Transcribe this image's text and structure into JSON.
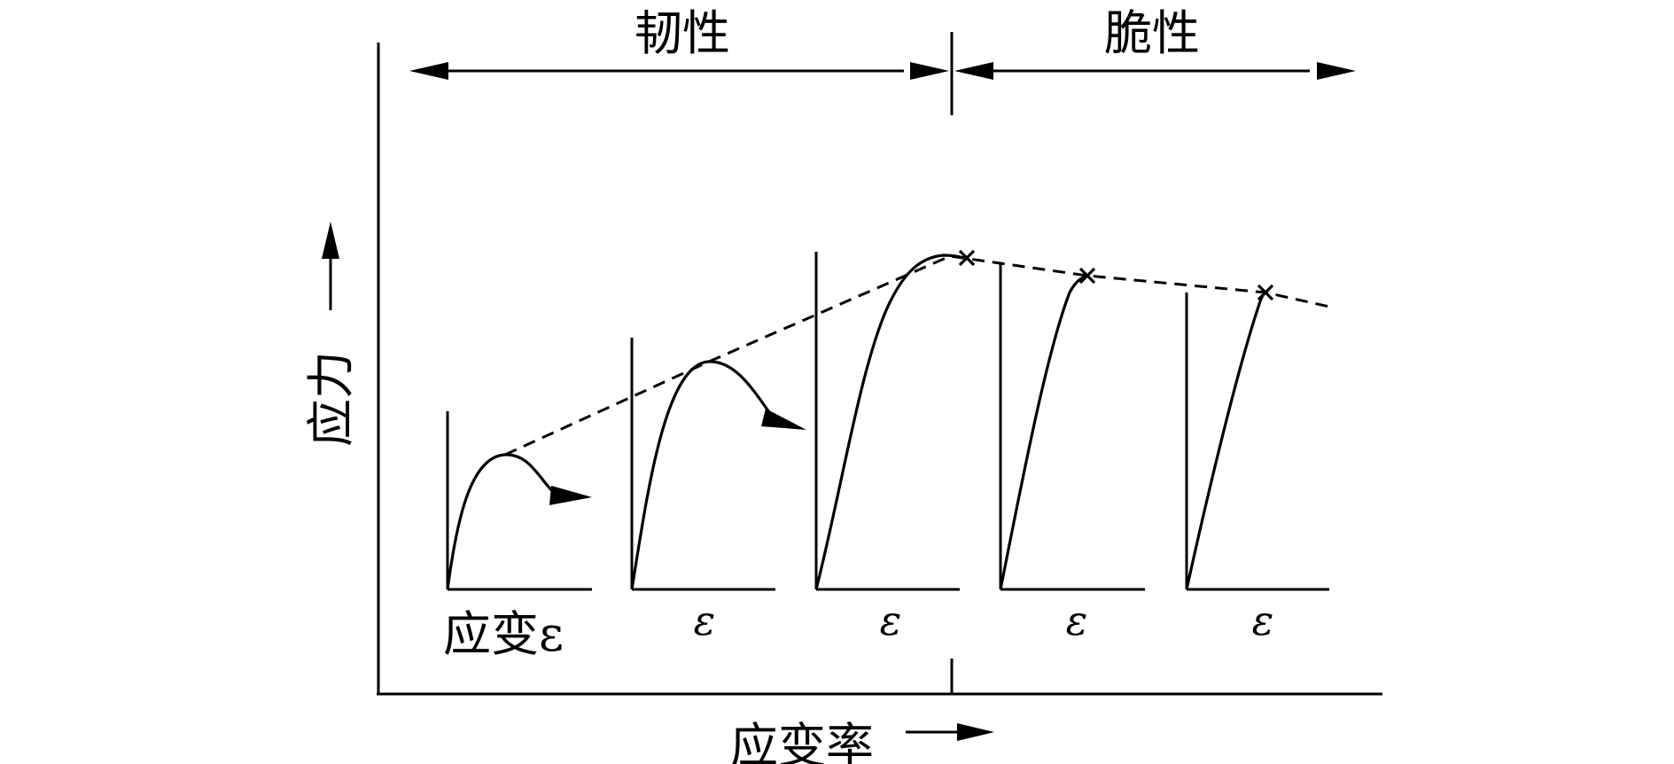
{
  "regions": {
    "ductile_label": "韧性",
    "brittle_label": "脆性"
  },
  "axes": {
    "y_label": "应力",
    "x_label": "应变率"
  },
  "panels": [
    {
      "strain_label": "应变ε",
      "behavior": "ductile",
      "failure_mark": false
    },
    {
      "strain_label": "ε",
      "behavior": "ductile",
      "failure_mark": false
    },
    {
      "strain_label": "ε",
      "behavior": "ductile",
      "failure_mark": true
    },
    {
      "strain_label": "ε",
      "behavior": "brittle",
      "failure_mark": true
    },
    {
      "strain_label": "ε",
      "behavior": "brittle",
      "failure_mark": true
    }
  ]
}
